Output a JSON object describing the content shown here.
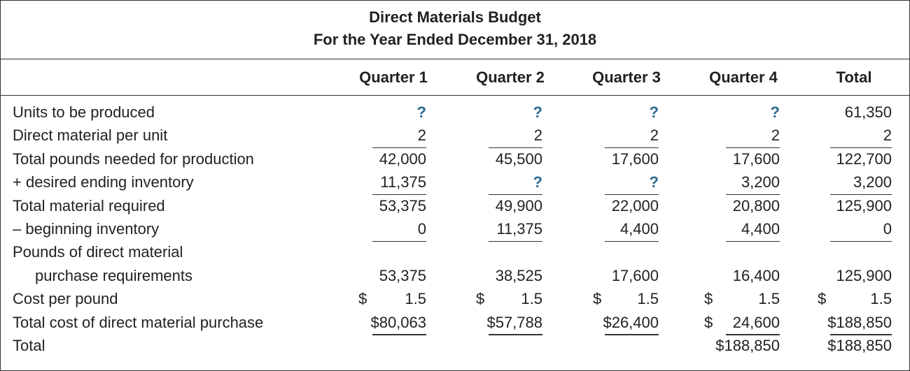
{
  "title": "Direct Materials Budget",
  "subtitle": "For the Year Ended December 31, 2018",
  "columns": [
    "Quarter 1",
    "Quarter 2",
    "Quarter 3",
    "Quarter 4",
    "Total"
  ],
  "question_color": "#2d6a8e",
  "rows": [
    {
      "label": "Units to be produced",
      "cells": [
        {
          "v": "?",
          "q": true
        },
        {
          "v": "?",
          "q": true
        },
        {
          "v": "?",
          "q": true
        },
        {
          "v": "?",
          "q": true
        },
        {
          "v": "61,350"
        }
      ]
    },
    {
      "label": "Direct material per unit",
      "cells": [
        {
          "v": "2",
          "ul": true
        },
        {
          "v": "2",
          "ul": true
        },
        {
          "v": "2",
          "ul": true
        },
        {
          "v": "2",
          "ul": true
        },
        {
          "v": "2",
          "ul": true
        }
      ]
    },
    {
      "label": "Total pounds needed for production",
      "cells": [
        {
          "v": "42,000"
        },
        {
          "v": "45,500"
        },
        {
          "v": "17,600"
        },
        {
          "v": "17,600"
        },
        {
          "v": "122,700"
        }
      ]
    },
    {
      "label": "+ desired ending inventory",
      "cells": [
        {
          "v": "11,375",
          "ul": true
        },
        {
          "v": "?",
          "q": true,
          "ul": true
        },
        {
          "v": "?",
          "q": true,
          "ul": true
        },
        {
          "v": "3,200",
          "ul": true
        },
        {
          "v": "3,200",
          "ul": true
        }
      ]
    },
    {
      "label": "Total material required",
      "cells": [
        {
          "v": "53,375"
        },
        {
          "v": "49,900"
        },
        {
          "v": "22,000"
        },
        {
          "v": "20,800"
        },
        {
          "v": "125,900"
        }
      ]
    },
    {
      "label": "– beginning inventory",
      "cells": [
        {
          "v": "0",
          "ul": true
        },
        {
          "v": "11,375",
          "ul": true
        },
        {
          "v": "4,400",
          "ul": true
        },
        {
          "v": "4,400",
          "ul": true
        },
        {
          "v": "0",
          "ul": true
        }
      ]
    },
    {
      "label": "Pounds of direct material",
      "cells": []
    },
    {
      "label": "purchase requirements",
      "indent": true,
      "cells": [
        {
          "v": "53,375"
        },
        {
          "v": "38,525"
        },
        {
          "v": "17,600"
        },
        {
          "v": "16,400"
        },
        {
          "v": "125,900"
        }
      ]
    },
    {
      "label": "Cost per pound",
      "cells": [
        {
          "p": "$",
          "v": "1.5"
        },
        {
          "p": "$",
          "v": "1.5"
        },
        {
          "p": "$",
          "v": "1.5"
        },
        {
          "p": "$",
          "v": "1.5"
        },
        {
          "p": "$",
          "v": "1.5"
        }
      ]
    },
    {
      "label": "Total cost of direct material purchase",
      "cells": [
        {
          "v": "$80,063",
          "ul": true
        },
        {
          "v": "$57,788",
          "ul": true
        },
        {
          "v": "$26,400",
          "ul": true
        },
        {
          "p": "$",
          "v": "24,600",
          "ul": true
        },
        {
          "v": "$188,850",
          "ul": true
        }
      ]
    },
    {
      "label": "Total",
      "cells": [
        null,
        null,
        null,
        {
          "v": "$188,850"
        },
        {
          "v": "$188,850"
        }
      ]
    }
  ]
}
